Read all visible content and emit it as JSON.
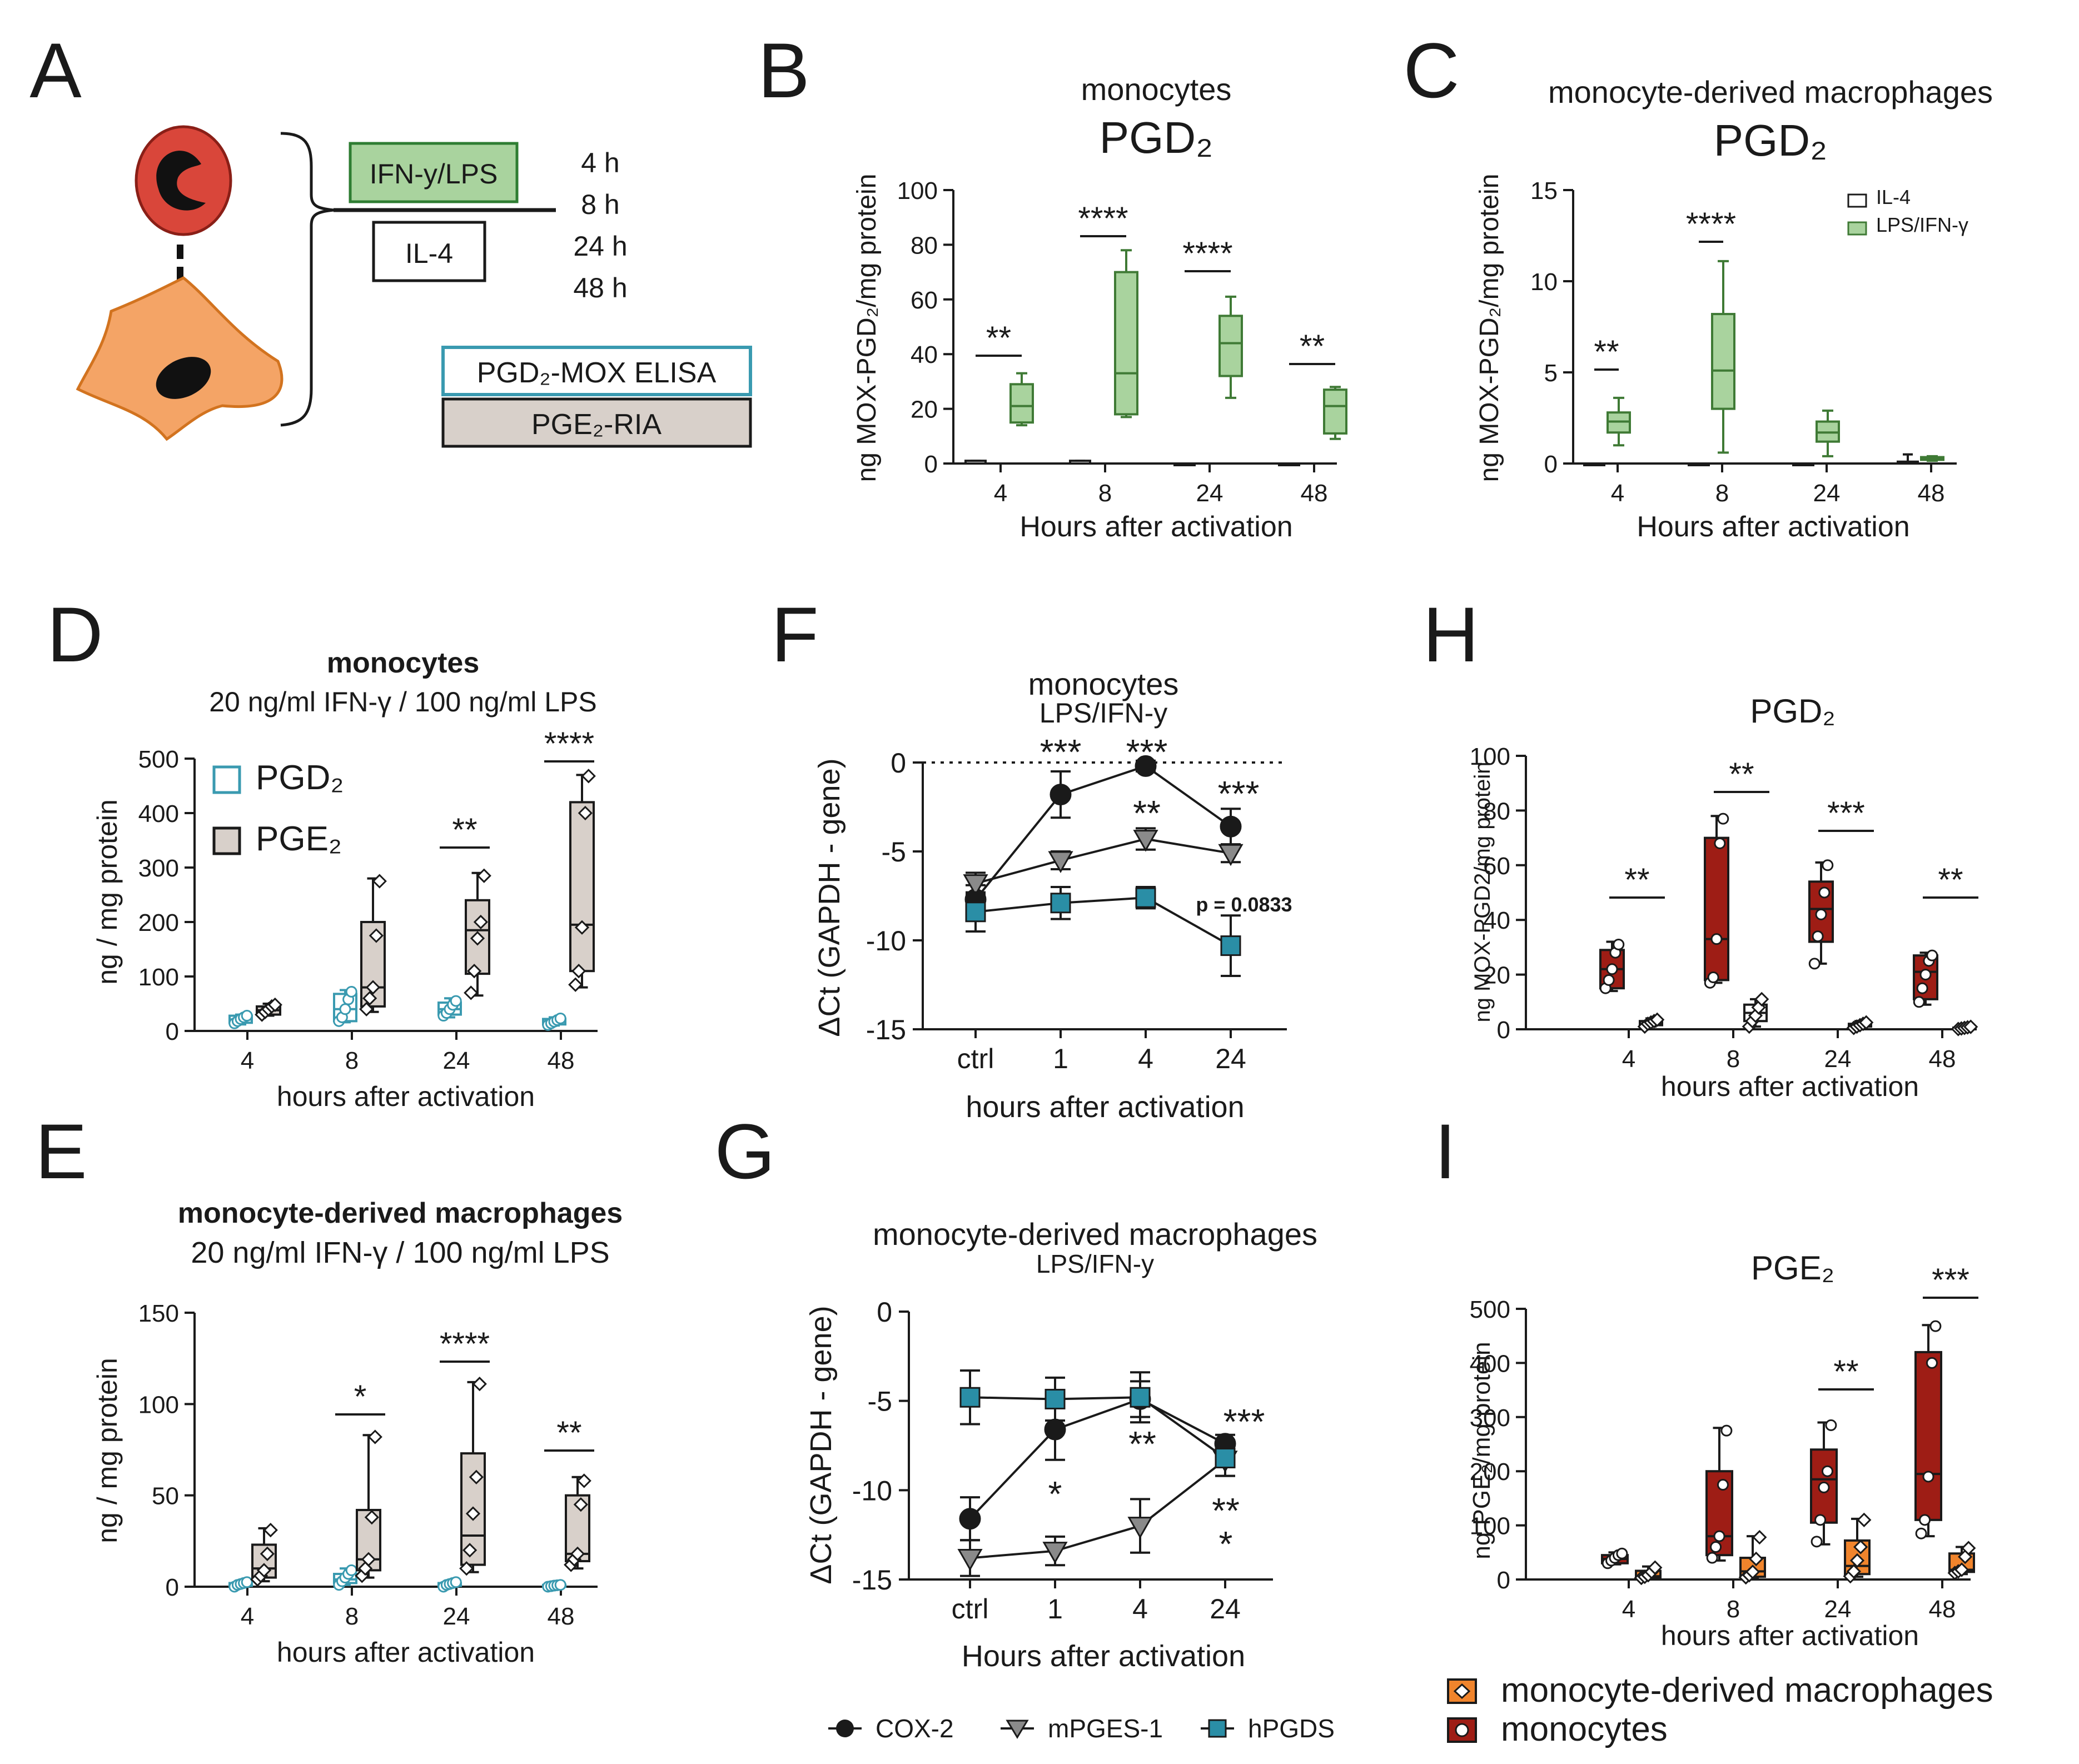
{
  "colors": {
    "green": "#a9d39e",
    "green_stroke": "#3f7a35",
    "dark_green": "#2f6b2a",
    "tan": "#d8d0ca",
    "teal": "#3a9ab0",
    "teal_fill": "#2a8ea6",
    "dark_red": "#9e1d15",
    "orange": "#f0842c",
    "gray_marker": "#8a8a8a",
    "cell_red": "#d9463a",
    "cell_orange": "#f4a466"
  },
  "chart_data": [
    {
      "id": "A",
      "type": "diagram",
      "panel_label": "A",
      "stimulus_1": "IFN-y/LPS",
      "stimulus_2": "IL-4",
      "timepoints": [
        "4 h",
        "8 h",
        "24 h",
        "48 h"
      ],
      "assay_1": "PGD₂-MOX ELISA",
      "assay_2": "PGE₂-RIA"
    },
    {
      "id": "B",
      "type": "box",
      "panel_label": "B",
      "title_1": "monocytes",
      "title_2": "PGD₂",
      "ylabel": "ng  MOX-PGD₂/mg protein",
      "xlabel": "Hours after activation",
      "ylim": [
        0,
        100
      ],
      "yticks": [
        "0",
        "20",
        "40",
        "60",
        "80",
        "100"
      ],
      "categories": [
        "4",
        "8",
        "24",
        "48"
      ],
      "series": [
        {
          "name": "IL-4",
          "boxes": [
            [
              0,
              0,
              0,
              1,
              1
            ],
            [
              0,
              0,
              0,
              1,
              1
            ],
            [
              0,
              0,
              0,
              0,
              0
            ],
            [
              0,
              0,
              0,
              0,
              0
            ]
          ]
        },
        {
          "name": "LPS/IFN-γ",
          "boxes": [
            [
              14,
              15,
              21,
              29,
              33
            ],
            [
              17,
              18,
              33,
              70,
              78
            ],
            [
              24,
              32,
              44,
              54,
              61
            ],
            [
              9,
              11,
              21,
              27,
              28
            ]
          ]
        }
      ],
      "significance": [
        "**",
        "****",
        "****",
        "**"
      ]
    },
    {
      "id": "C",
      "type": "box",
      "panel_label": "C",
      "title_1": "monocyte-derived macrophages",
      "title_2": "PGD₂",
      "ylabel": "ng  MOX-PGD₂/mg protein",
      "xlabel": "Hours after activation",
      "ylim": [
        0,
        15
      ],
      "yticks": [
        "0",
        "5",
        "10",
        "15"
      ],
      "categories": [
        "4",
        "8",
        "24",
        "48"
      ],
      "legend": [
        "IL-4",
        "LPS/IFN-γ"
      ],
      "series": [
        {
          "name": "IL-4",
          "boxes": [
            [
              0,
              0,
              0,
              0,
              0
            ],
            [
              0,
              0,
              0,
              0,
              0
            ],
            [
              0,
              0,
              0,
              0,
              0
            ],
            [
              0,
              0,
              0.05,
              0.1,
              0.5
            ]
          ]
        },
        {
          "name": "LPS/IFN-γ",
          "boxes": [
            [
              1,
              1.7,
              2.3,
              2.8,
              3.6
            ],
            [
              0.6,
              3,
              5.1,
              8.2,
              11.1
            ],
            [
              0.4,
              1.2,
              1.7,
              2.3,
              2.9
            ],
            [
              0.15,
              0.2,
              0.28,
              0.35,
              0.4
            ]
          ]
        }
      ],
      "significance": [
        "**",
        "****",
        "",
        ""
      ]
    },
    {
      "id": "D",
      "type": "box",
      "panel_label": "D",
      "title_1": "monocytes",
      "title_2": "20 ng/ml IFN-γ / 100 ng/ml LPS",
      "ylabel": "ng / mg protein",
      "xlabel": "hours after activation",
      "ylim": [
        0,
        500
      ],
      "yticks": [
        "0",
        "100",
        "200",
        "300",
        "400",
        "500"
      ],
      "categories": [
        "4",
        "8",
        "24",
        "48"
      ],
      "legend": [
        "PGD₂",
        "PGE₂"
      ],
      "series": [
        {
          "name": "PGD₂",
          "boxes": [
            [
              12,
              15,
              21,
              28,
              30
            ],
            [
              16,
              18,
              40,
              68,
              75
            ],
            [
              25,
              30,
              40,
              52,
              60
            ],
            [
              10,
              12,
              17,
              22,
              25
            ]
          ],
          "points": [
            [
              14,
              18,
              22,
              25,
              28
            ],
            [
              18,
              25,
              40,
              58,
              72
            ],
            [
              28,
              33,
              40,
              48,
              55
            ],
            [
              11,
              14,
              17,
              20,
              23
            ]
          ]
        },
        {
          "name": "PGE₂",
          "boxes": [
            [
              28,
              30,
              38,
              45,
              50
            ],
            [
              35,
              45,
              80,
              200,
              280
            ],
            [
              65,
              105,
              185,
              240,
              290
            ],
            [
              80,
              110,
              195,
              420,
              470
            ]
          ],
          "points": [
            [
              30,
              35,
              40,
              45,
              48
            ],
            [
              40,
              60,
              80,
              175,
              275
            ],
            [
              70,
              110,
              170,
              200,
              285
            ],
            [
              85,
              110,
              190,
              400,
              468
            ]
          ]
        }
      ],
      "significance": [
        "",
        "",
        "**",
        "****"
      ]
    },
    {
      "id": "E",
      "type": "box",
      "panel_label": "E",
      "title_1": "monocyte-derived macrophages",
      "title_2": "20 ng/ml IFN-γ / 100 ng/ml LPS",
      "ylabel": "ng / mg protein",
      "xlabel": "hours after activation",
      "ylim": [
        0,
        150
      ],
      "yticks": [
        "0",
        "50",
        "100",
        "150"
      ],
      "categories": [
        "4",
        "8",
        "24",
        "48"
      ],
      "series": [
        {
          "name": "PGD₂",
          "boxes": [
            [
              0,
              0.5,
              1,
              2,
              3
            ],
            [
              1,
              2,
              4,
              7,
              10
            ],
            [
              0,
              0.5,
              1,
              2,
              3
            ],
            [
              0,
              0,
              0.5,
              1,
              1
            ]
          ],
          "points": [
            [
              0,
              1,
              1.5,
              2,
              2.5
            ],
            [
              1,
              3,
              5,
              7,
              9
            ],
            [
              0,
              1,
              1.5,
              2,
              2.5
            ],
            [
              0,
              0.3,
              0.6,
              0.8,
              1
            ]
          ]
        },
        {
          "name": "PGE₂",
          "boxes": [
            [
              3,
              5,
              10,
              23,
              32
            ],
            [
              5,
              9,
              15,
              42,
              83
            ],
            [
              8,
              12,
              28,
              73,
              112
            ],
            [
              10,
              14,
              18,
              50,
              60
            ]
          ],
          "points": [
            [
              4,
              6,
              9,
              18,
              31
            ],
            [
              6,
              10,
              15,
              38,
              82
            ],
            [
              10,
              20,
              40,
              60,
              111
            ],
            [
              12,
              15,
              18,
              45,
              58
            ]
          ]
        }
      ],
      "significance": [
        "",
        "*",
        "****",
        "**"
      ]
    },
    {
      "id": "F",
      "type": "line",
      "panel_label": "F",
      "title_1": "monocytes",
      "title_2": "LPS/IFN-y",
      "ylabel": "ΔCt (GAPDH - gene)",
      "xlabel": "hours after activation",
      "ylim": [
        -15,
        0
      ],
      "yticks": [
        "0",
        "-5",
        "-10",
        "-15"
      ],
      "categories": [
        "ctrl",
        "1",
        "4",
        "24"
      ],
      "series": [
        {
          "name": "COX-2",
          "values": [
            -7.7,
            -1.8,
            -0.2,
            -3.6
          ],
          "err": [
            0.8,
            1.3,
            0.3,
            1.0
          ]
        },
        {
          "name": "mPGES-1",
          "values": [
            -6.8,
            -5.5,
            -4.3,
            -5.1
          ],
          "err": [
            0.6,
            0.5,
            0.6,
            0.5
          ]
        },
        {
          "name": "hPGDS",
          "values": [
            -8.4,
            -7.9,
            -7.6,
            -10.3
          ],
          "err": [
            1.1,
            0.9,
            0.6,
            1.7
          ]
        }
      ],
      "annotations": {
        "cox_1": "***",
        "cox_4": "***",
        "cox_24": "***",
        "mpges_4": "**",
        "pval": "p = 0.0833"
      }
    },
    {
      "id": "G",
      "type": "line",
      "panel_label": "G",
      "title_1": "monocyte-derived macrophages",
      "title_2": "LPS/IFN-y",
      "ylabel": "ΔCt (GAPDH - gene)",
      "xlabel": "Hours after activation",
      "ylim": [
        -15,
        0
      ],
      "yticks": [
        "0",
        "-5",
        "-10",
        "-15"
      ],
      "categories": [
        "ctrl",
        "1",
        "4",
        "24"
      ],
      "series": [
        {
          "name": "COX-2",
          "values": [
            -11.6,
            -6.6,
            -4.9,
            -7.4
          ],
          "err": [
            1.2,
            1.7,
            1.0,
            0.5
          ]
        },
        {
          "name": "mPGES-1",
          "values": [
            -13.8,
            -13.4,
            -12.0,
            -8.3
          ],
          "err": [
            1.0,
            0.8,
            1.5,
            0.9
          ]
        },
        {
          "name": "hPGDS",
          "values": [
            -4.8,
            -4.9,
            -4.8,
            -8.2
          ],
          "err": [
            1.5,
            1.2,
            1.4,
            1.0
          ]
        }
      ],
      "annotations": {
        "cox_1": "*",
        "cox_4": "**",
        "hpgds_24": "***",
        "cox_24": "**",
        "mpges_24": "*"
      },
      "legend": [
        "COX-2",
        "mPGES-1",
        "hPGDS"
      ]
    },
    {
      "id": "H",
      "type": "box",
      "panel_label": "H",
      "title_1": "PGD₂",
      "ylabel": "ng MOX-PGD2/mg protein",
      "xlabel": "hours after activation",
      "ylim": [
        0,
        100
      ],
      "yticks": [
        "0",
        "20",
        "40",
        "60",
        "80",
        "100"
      ],
      "categories": [
        "4",
        "8",
        "24",
        "48"
      ],
      "series": [
        {
          "name": "monocytes",
          "boxes": [
            [
              14,
              15,
              22,
              29,
              32
            ],
            [
              17,
              18,
              33,
              70,
              78
            ],
            [
              24,
              32,
              44,
              54,
              61
            ],
            [
              9,
              11,
              21,
              27,
              28
            ]
          ],
          "points": [
            [
              15,
              18,
              22,
              28,
              31
            ],
            [
              17,
              19,
              33,
              68,
              77
            ],
            [
              24,
              34,
              42,
              50,
              60
            ],
            [
              10,
              15,
              20,
              25,
              27
            ]
          ]
        },
        {
          "name": "monocyte-derived macrophages",
          "boxes": [
            [
              1,
              1.5,
              2,
              3,
              4
            ],
            [
              1,
              3,
              6,
              9,
              11
            ],
            [
              0.5,
              1,
              1.5,
              2,
              3
            ],
            [
              0,
              0.2,
              0.4,
              0.6,
              1
            ]
          ],
          "points": [
            [
              1,
              2,
              2.5,
              3,
              3.5
            ],
            [
              1,
              3,
              5,
              8,
              11
            ],
            [
              0.5,
              1,
              1.5,
              2,
              2.5
            ],
            [
              0.1,
              0.3,
              0.5,
              0.7,
              0.9
            ]
          ]
        }
      ],
      "significance": [
        "**",
        "**",
        "***",
        "**"
      ]
    },
    {
      "id": "I",
      "type": "box",
      "panel_label": "I",
      "title_1": "PGE₂",
      "ylabel": "ng PGE₂/mg protein",
      "xlabel": "hours after activation",
      "ylim": [
        0,
        500
      ],
      "yticks": [
        "0",
        "100",
        "200",
        "300",
        "400",
        "500"
      ],
      "categories": [
        "4",
        "8",
        "24",
        "48"
      ],
      "series": [
        {
          "name": "monocytes",
          "boxes": [
            [
              28,
              30,
              38,
              45,
              50
            ],
            [
              35,
              45,
              80,
              200,
              280
            ],
            [
              65,
              105,
              185,
              240,
              290
            ],
            [
              80,
              110,
              195,
              420,
              470
            ]
          ],
          "points": [
            [
              30,
              35,
              40,
              45,
              48
            ],
            [
              40,
              60,
              80,
              175,
              275
            ],
            [
              70,
              110,
              170,
              200,
              285
            ],
            [
              85,
              110,
              190,
              400,
              468
            ]
          ]
        },
        {
          "name": "monocyte-derived macrophages",
          "boxes": [
            [
              2,
              3,
              6,
              16,
              24
            ],
            [
              3,
              5,
              15,
              40,
              80
            ],
            [
              5,
              10,
              25,
              72,
              112
            ],
            [
              10,
              14,
              18,
              48,
              60
            ]
          ],
          "points": [
            [
              3,
              5,
              8,
              14,
              22
            ],
            [
              4,
              8,
              14,
              38,
              78
            ],
            [
              6,
              15,
              35,
              60,
              110
            ],
            [
              12,
              15,
              18,
              42,
              58
            ]
          ]
        }
      ],
      "significance": [
        "",
        "",
        "**",
        "***"
      ],
      "legend": [
        "monocyte-derived macrophages",
        "monocytes"
      ]
    }
  ]
}
